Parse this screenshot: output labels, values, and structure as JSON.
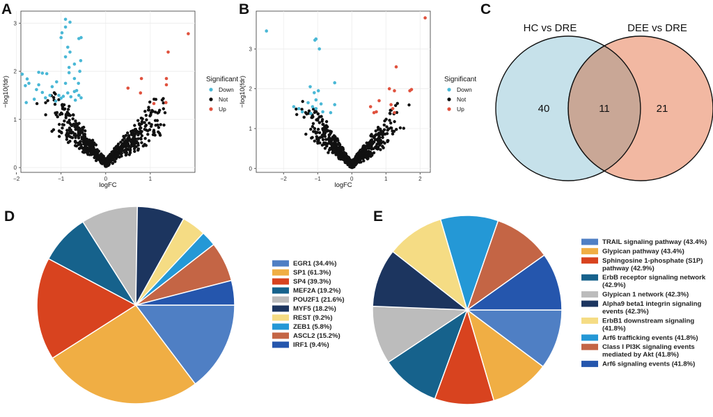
{
  "panel_labels": {
    "a": "A",
    "b": "B",
    "c": "C",
    "d": "D",
    "e": "E"
  },
  "colors": {
    "down": "#4ab8d6",
    "not": "#111111",
    "up": "#e0523e",
    "set1": "#c6e1ea",
    "set2": "#f2b8a2",
    "overlap": "#c9a796"
  },
  "chart_data": [
    {
      "id": "A",
      "type": "scatter",
      "title": "",
      "xlabel": "logFC",
      "ylabel": "−log10(fdr)",
      "xlim": [
        -1.9,
        2.0
      ],
      "ylim": [
        -0.1,
        3.25
      ],
      "xticks": [
        -2,
        -1,
        0,
        1
      ],
      "yticks": [
        0,
        1,
        2,
        3
      ],
      "legend": {
        "title": "Significant",
        "entries": [
          "Down",
          "Not",
          "Up"
        ]
      },
      "series": {
        "Down": [
          [
            -0.9,
            3.08
          ],
          [
            -0.8,
            3.02
          ],
          [
            -0.9,
            2.92
          ],
          [
            -0.98,
            2.8
          ],
          [
            -0.55,
            2.7
          ],
          [
            -0.6,
            2.68
          ],
          [
            -1.0,
            2.7
          ],
          [
            -0.85,
            2.5
          ],
          [
            -0.8,
            2.4
          ],
          [
            -0.9,
            2.3
          ],
          [
            -0.56,
            2.22
          ],
          [
            -0.7,
            2.15
          ],
          [
            -0.82,
            2.08
          ],
          [
            -0.58,
            2.0
          ],
          [
            -0.82,
            1.97
          ],
          [
            -1.5,
            1.98
          ],
          [
            -1.42,
            1.96
          ],
          [
            -1.32,
            1.95
          ],
          [
            -1.87,
            1.94
          ],
          [
            -1.76,
            1.84
          ],
          [
            -1.72,
            1.75
          ],
          [
            -1.1,
            1.78
          ],
          [
            -0.7,
            1.85
          ],
          [
            -0.9,
            1.75
          ],
          [
            -0.61,
            1.75
          ],
          [
            -1.5,
            1.72
          ],
          [
            -1.55,
            1.62
          ],
          [
            -1.2,
            1.68
          ],
          [
            -1.42,
            1.56
          ],
          [
            -1.8,
            1.7
          ],
          [
            -0.65,
            1.6
          ],
          [
            -1.25,
            1.5
          ],
          [
            -1.05,
            1.5
          ],
          [
            -0.95,
            1.48
          ],
          [
            -0.78,
            1.47
          ],
          [
            -0.6,
            1.5
          ],
          [
            -0.7,
            1.58
          ],
          [
            -1.6,
            1.42
          ],
          [
            -1.12,
            1.38
          ],
          [
            -1.35,
            1.45
          ],
          [
            -1.78,
            1.35
          ],
          [
            -1.0,
            1.44
          ],
          [
            -0.85,
            1.55
          ],
          [
            -0.55,
            1.45
          ],
          [
            -0.68,
            1.4
          ]
        ],
        "Up": [
          [
            1.85,
            2.78
          ],
          [
            1.4,
            2.4
          ],
          [
            1.36,
            1.85
          ],
          [
            1.36,
            1.72
          ],
          [
            0.8,
            1.85
          ],
          [
            0.5,
            1.65
          ],
          [
            1.35,
            1.35
          ],
          [
            0.78,
            1.55
          ],
          [
            1.08,
            1.33
          ]
        ]
      }
    },
    {
      "id": "B",
      "type": "scatter",
      "title": "",
      "xlabel": "logFC",
      "ylabel": "−log10(fdr)",
      "xlim": [
        -2.8,
        2.3
      ],
      "ylim": [
        -0.1,
        3.95
      ],
      "xticks": [
        -2,
        -1,
        0,
        1,
        2
      ],
      "yticks": [
        0,
        1,
        2,
        3
      ],
      "legend": {
        "title": "Significant",
        "entries": [
          "Down",
          "Not",
          "Up"
        ]
      },
      "series": {
        "Down": [
          [
            -2.5,
            3.45
          ],
          [
            -1.05,
            3.25
          ],
          [
            -1.08,
            3.22
          ],
          [
            -0.95,
            3.0
          ],
          [
            -1.22,
            2.05
          ],
          [
            -0.98,
            1.95
          ],
          [
            -1.1,
            1.9
          ],
          [
            -0.5,
            2.15
          ],
          [
            -1.28,
            1.65
          ],
          [
            -1.05,
            1.72
          ],
          [
            -1.7,
            1.55
          ],
          [
            -1.55,
            1.5
          ],
          [
            -1.05,
            1.5
          ],
          [
            -0.9,
            1.62
          ],
          [
            -0.5,
            1.6
          ],
          [
            -0.85,
            1.42
          ],
          [
            -1.2,
            1.38
          ],
          [
            -0.62,
            1.4
          ],
          [
            -1.45,
            1.42
          ],
          [
            -1.15,
            1.55
          ]
        ],
        "Up": [
          [
            2.15,
            3.78
          ],
          [
            1.3,
            2.55
          ],
          [
            1.25,
            1.95
          ],
          [
            1.75,
            1.98
          ],
          [
            1.7,
            1.95
          ],
          [
            0.8,
            1.7
          ],
          [
            1.1,
            2.0
          ],
          [
            1.15,
            1.6
          ],
          [
            0.65,
            1.4
          ],
          [
            0.72,
            1.42
          ],
          [
            1.25,
            1.4
          ],
          [
            1.2,
            1.5
          ],
          [
            0.55,
            1.55
          ]
        ]
      }
    },
    {
      "id": "C",
      "type": "venn",
      "title": "",
      "sets": [
        {
          "name": "HC vs DRE",
          "only": "40"
        },
        {
          "name": "DEE vs DRE",
          "only": "21"
        }
      ],
      "overlap": "11"
    },
    {
      "id": "D",
      "type": "pie",
      "title": "",
      "slices": [
        {
          "label": "EGR1 (34.4%)",
          "value": 34.4,
          "color": "#4f7fc4"
        },
        {
          "label": "SP1 (61.3%)",
          "value": 61.3,
          "color": "#f0ae44"
        },
        {
          "label": "SP4 (39.3%)",
          "value": 39.3,
          "color": "#d8431f"
        },
        {
          "label": "MEF2A (19.2%)",
          "value": 19.2,
          "color": "#16628c"
        },
        {
          "label": "POU2F1 (21.6%)",
          "value": 21.6,
          "color": "#bcbcbc"
        },
        {
          "label": "MYF5 (18.2%)",
          "value": 18.2,
          "color": "#1c355f"
        },
        {
          "label": "REST (9.2%)",
          "value": 9.2,
          "color": "#f5dc84"
        },
        {
          "label": "ZEB1 (5.8%)",
          "value": 5.8,
          "color": "#2498d6"
        },
        {
          "label": "ASCL2 (15.2%)",
          "value": 15.2,
          "color": "#c46545"
        },
        {
          "label": "IRF1 (9.4%)",
          "value": 9.4,
          "color": "#2556ad"
        }
      ]
    },
    {
      "id": "E",
      "type": "pie",
      "title": "",
      "slices": [
        {
          "label": "TRAIL signaling pathway (43.4%)",
          "value": 43.4,
          "color": "#4f7fc4"
        },
        {
          "label": "Glypican pathway (43.4%)",
          "value": 43.4,
          "color": "#f0ae44"
        },
        {
          "label": "Sphingosine 1-phosphate (S1P) pathway (42.9%)",
          "value": 42.9,
          "color": "#d8431f"
        },
        {
          "label": "ErbB receptor signaling network (42.9%)",
          "value": 42.9,
          "color": "#16628c"
        },
        {
          "label": "Glypican 1 network (42.3%)",
          "value": 42.3,
          "color": "#bcbcbc"
        },
        {
          "label": "Alpha9 beta1 integrin signaling events (42.3%)",
          "value": 42.3,
          "color": "#1c355f"
        },
        {
          "label": "ErbB1 downstream signaling (41.8%)",
          "value": 41.8,
          "color": "#f5dc84"
        },
        {
          "label": "Arf6 trafficking events (41.8%)",
          "value": 41.8,
          "color": "#2498d6"
        },
        {
          "label": "Class I PI3K signaling events mediated by Akt (41.8%)",
          "value": 41.8,
          "color": "#c46545"
        },
        {
          "label": "Arf6 signaling events (41.8%)",
          "value": 41.8,
          "color": "#2556ad"
        }
      ]
    }
  ]
}
